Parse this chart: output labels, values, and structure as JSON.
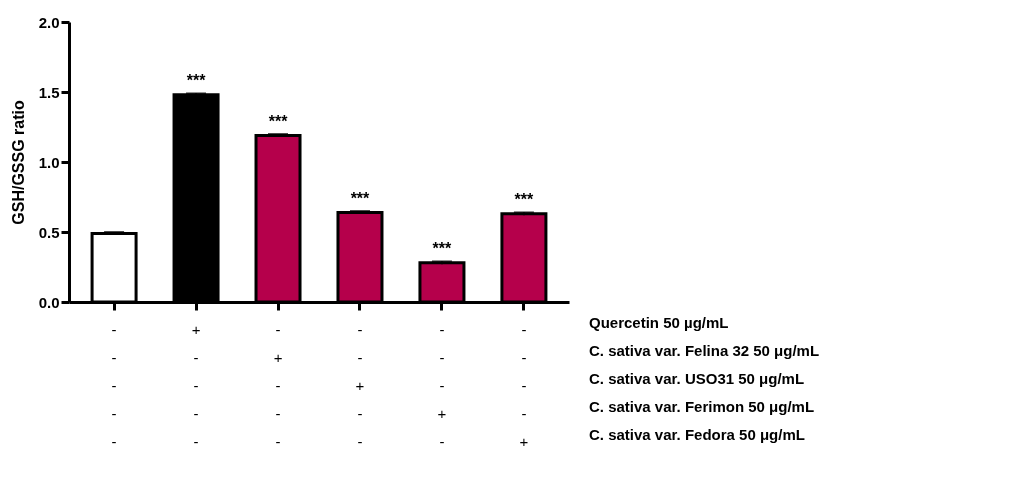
{
  "chart_data": {
    "type": "bar",
    "ylabel": "GSH/GSSG ratio",
    "categories": [
      "-\n-\n-\n-\n-",
      "+\n-\n-\n-\n-",
      "-\n+\n-\n-\n-",
      "-\n-\n+\n-\n-",
      "-\n-\n-\n+\n-",
      "-\n-\n-\n-\n+"
    ],
    "values": [
      0.49,
      1.48,
      1.19,
      0.64,
      0.28,
      0.63
    ],
    "errors": [
      0.01,
      0.01,
      0.01,
      0.01,
      0.01,
      0.01
    ],
    "colors": [
      "#ffffff",
      "#000000",
      "#b5004b",
      "#b5004b",
      "#b5004b",
      "#b5004b"
    ],
    "value_labels": [
      null,
      "***",
      "***",
      "***",
      "***",
      "***"
    ],
    "ylim": [
      0,
      2
    ],
    "yticks": [
      {
        "value": 0,
        "label": "0.0"
      },
      {
        "value": 0.5,
        "label": "0.5"
      },
      {
        "value": 1,
        "label": "1.0"
      },
      {
        "value": 1.5,
        "label": "1.5"
      },
      {
        "value": 2,
        "label": "2.0"
      }
    ],
    "annotations": [
      "Quercetin 50 µg/mL",
      "C. sativa var. Felina 32 50 μg/mL",
      "C. sativa var. USO31 50 μg/mL",
      "C. sativa var. Ferimon 50 μg/mL",
      "C. sativa var. Fedora 50 μg/mL"
    ],
    "grid": false
  }
}
